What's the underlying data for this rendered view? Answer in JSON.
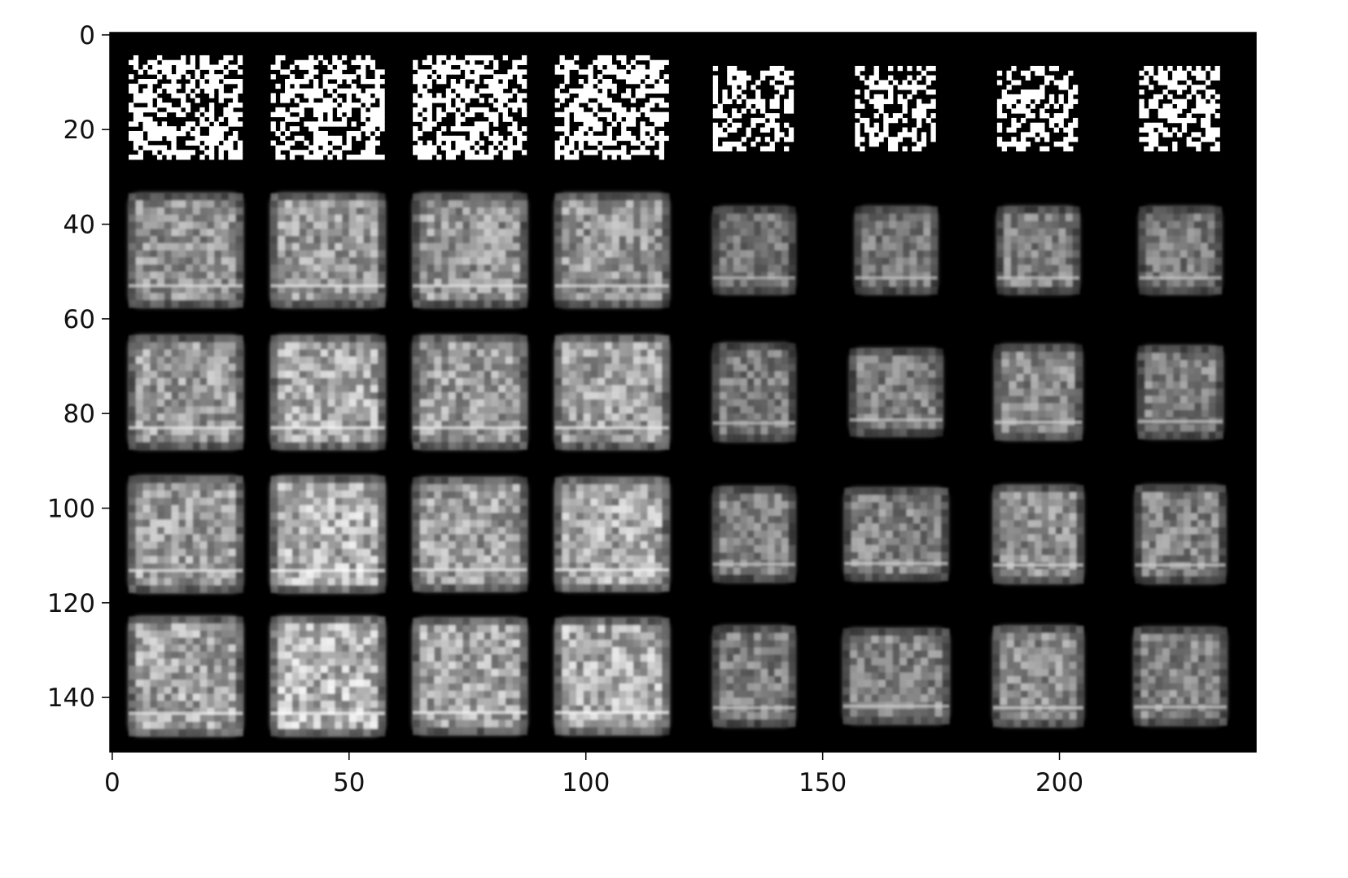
{
  "chart_data": {
    "type": "heatmap",
    "colormap": "gray",
    "background": "#000000",
    "image_width": 242,
    "image_height": 152,
    "xlim": [
      -0.5,
      241.5
    ],
    "ylim": [
      151.5,
      -0.5
    ],
    "grid": false,
    "x_ticks": [
      0,
      50,
      100,
      150,
      200
    ],
    "y_ticks": [
      0,
      20,
      40,
      60,
      80,
      100,
      120,
      140
    ],
    "x_tick_labels": [
      "0",
      "50",
      "100",
      "150",
      "200"
    ],
    "y_tick_labels": [
      "0",
      "20",
      "40",
      "60",
      "80",
      "100",
      "120",
      "140"
    ],
    "tile_grid": {
      "rows": 5,
      "cols": 8,
      "tile_size": 28,
      "padding": 2
    },
    "row_descriptions": [
      "binary noise",
      "blurry garments",
      "blurry garments",
      "blurry garments",
      "blurry garments"
    ],
    "tiles": [
      {
        "row": 0,
        "col": 0,
        "kind": "noise",
        "brightness": 0.55,
        "width": 0.86,
        "height": 0.8
      },
      {
        "row": 0,
        "col": 1,
        "kind": "noise",
        "brightness": 0.55,
        "width": 0.86,
        "height": 0.8
      },
      {
        "row": 0,
        "col": 2,
        "kind": "noise",
        "brightness": 0.55,
        "width": 0.86,
        "height": 0.8
      },
      {
        "row": 0,
        "col": 3,
        "kind": "noise",
        "brightness": 0.55,
        "width": 0.86,
        "height": 0.8
      },
      {
        "row": 0,
        "col": 4,
        "kind": "noise",
        "brightness": 0.5,
        "width": 0.62,
        "height": 0.64
      },
      {
        "row": 0,
        "col": 5,
        "kind": "noise",
        "brightness": 0.5,
        "width": 0.62,
        "height": 0.64
      },
      {
        "row": 0,
        "col": 6,
        "kind": "noise",
        "brightness": 0.5,
        "width": 0.62,
        "height": 0.64
      },
      {
        "row": 0,
        "col": 7,
        "kind": "noise",
        "brightness": 0.5,
        "width": 0.62,
        "height": 0.64
      },
      {
        "row": 1,
        "col": 0,
        "kind": "garment",
        "brightness": 0.62,
        "width": 0.86,
        "height": 0.86
      },
      {
        "row": 1,
        "col": 1,
        "kind": "garment",
        "brightness": 0.66,
        "width": 0.86,
        "height": 0.86
      },
      {
        "row": 1,
        "col": 2,
        "kind": "garment",
        "brightness": 0.64,
        "width": 0.86,
        "height": 0.86
      },
      {
        "row": 1,
        "col": 3,
        "kind": "garment",
        "brightness": 0.64,
        "width": 0.86,
        "height": 0.86
      },
      {
        "row": 1,
        "col": 4,
        "kind": "garment",
        "brightness": 0.5,
        "width": 0.62,
        "height": 0.66
      },
      {
        "row": 1,
        "col": 5,
        "kind": "garment",
        "brightness": 0.52,
        "width": 0.62,
        "height": 0.66
      },
      {
        "row": 1,
        "col": 6,
        "kind": "garment",
        "brightness": 0.55,
        "width": 0.62,
        "height": 0.66
      },
      {
        "row": 1,
        "col": 7,
        "kind": "garment",
        "brightness": 0.52,
        "width": 0.62,
        "height": 0.66
      },
      {
        "row": 2,
        "col": 0,
        "kind": "garment",
        "brightness": 0.66,
        "width": 0.86,
        "height": 0.86
      },
      {
        "row": 2,
        "col": 1,
        "kind": "garment",
        "brightness": 0.72,
        "width": 0.86,
        "height": 0.86
      },
      {
        "row": 2,
        "col": 2,
        "kind": "garment",
        "brightness": 0.66,
        "width": 0.86,
        "height": 0.86
      },
      {
        "row": 2,
        "col": 3,
        "kind": "garment",
        "brightness": 0.68,
        "width": 0.86,
        "height": 0.86
      },
      {
        "row": 2,
        "col": 4,
        "kind": "garment",
        "brightness": 0.52,
        "width": 0.62,
        "height": 0.74
      },
      {
        "row": 2,
        "col": 5,
        "kind": "garment",
        "brightness": 0.54,
        "width": 0.7,
        "height": 0.66
      },
      {
        "row": 2,
        "col": 6,
        "kind": "garment",
        "brightness": 0.58,
        "width": 0.66,
        "height": 0.72
      },
      {
        "row": 2,
        "col": 7,
        "kind": "garment",
        "brightness": 0.55,
        "width": 0.64,
        "height": 0.7
      },
      {
        "row": 3,
        "col": 0,
        "kind": "garment",
        "brightness": 0.68,
        "width": 0.86,
        "height": 0.88
      },
      {
        "row": 3,
        "col": 1,
        "kind": "garment",
        "brightness": 0.76,
        "width": 0.86,
        "height": 0.88
      },
      {
        "row": 3,
        "col": 2,
        "kind": "garment",
        "brightness": 0.68,
        "width": 0.86,
        "height": 0.86
      },
      {
        "row": 3,
        "col": 3,
        "kind": "garment",
        "brightness": 0.72,
        "width": 0.86,
        "height": 0.86
      },
      {
        "row": 3,
        "col": 4,
        "kind": "garment",
        "brightness": 0.54,
        "width": 0.62,
        "height": 0.72
      },
      {
        "row": 3,
        "col": 5,
        "kind": "garment",
        "brightness": 0.56,
        "width": 0.78,
        "height": 0.7
      },
      {
        "row": 3,
        "col": 6,
        "kind": "garment",
        "brightness": 0.6,
        "width": 0.68,
        "height": 0.74
      },
      {
        "row": 3,
        "col": 7,
        "kind": "garment",
        "brightness": 0.56,
        "width": 0.68,
        "height": 0.74
      },
      {
        "row": 4,
        "col": 0,
        "kind": "garment",
        "brightness": 0.7,
        "width": 0.86,
        "height": 0.9
      },
      {
        "row": 4,
        "col": 1,
        "kind": "garment",
        "brightness": 0.78,
        "width": 0.86,
        "height": 0.9
      },
      {
        "row": 4,
        "col": 2,
        "kind": "garment",
        "brightness": 0.7,
        "width": 0.86,
        "height": 0.88
      },
      {
        "row": 4,
        "col": 3,
        "kind": "garment",
        "brightness": 0.74,
        "width": 0.86,
        "height": 0.88
      },
      {
        "row": 4,
        "col": 4,
        "kind": "garment",
        "brightness": 0.54,
        "width": 0.62,
        "height": 0.76
      },
      {
        "row": 4,
        "col": 5,
        "kind": "garment",
        "brightness": 0.56,
        "width": 0.8,
        "height": 0.72
      },
      {
        "row": 4,
        "col": 6,
        "kind": "garment",
        "brightness": 0.6,
        "width": 0.68,
        "height": 0.76
      },
      {
        "row": 4,
        "col": 7,
        "kind": "garment",
        "brightness": 0.56,
        "width": 0.7,
        "height": 0.74
      }
    ]
  }
}
